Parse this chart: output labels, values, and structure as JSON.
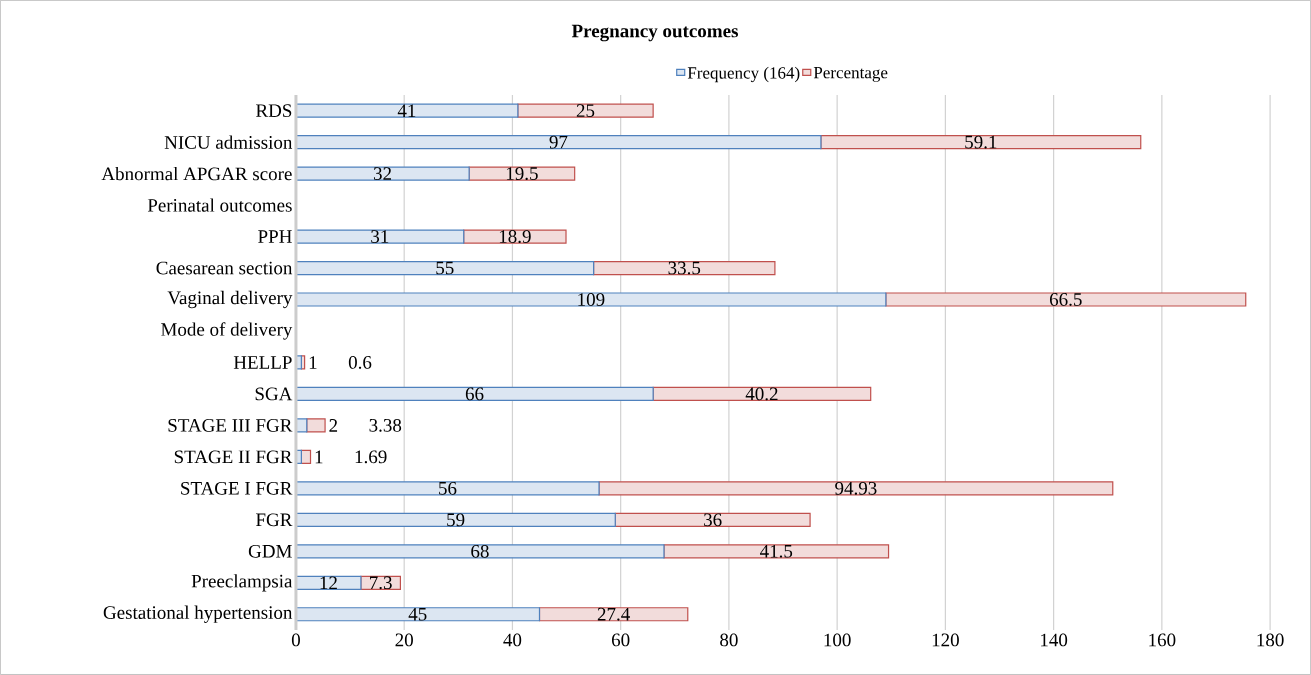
{
  "chart_data": {
    "type": "bar",
    "orientation": "horizontal",
    "stacked": true,
    "title": "Pregnancy outcomes",
    "categories": [
      "RDS",
      "NICU admission",
      "Abnormal APGAR score",
      "Perinatal outcomes",
      "PPH",
      "Caesarean section",
      "Vaginal delivery",
      "Mode of delivery",
      "HELLP",
      "SGA",
      "STAGE III FGR",
      "STAGE II FGR",
      "STAGE I FGR",
      "FGR",
      "GDM",
      "Preeclampsia",
      "Gestational hypertension"
    ],
    "series": [
      {
        "name": "Frequency (164)",
        "color": "#4f81bd",
        "values": [
          41,
          97,
          32,
          null,
          31,
          55,
          109,
          null,
          1,
          66,
          2,
          1,
          56,
          59,
          68,
          12,
          45
        ]
      },
      {
        "name": "Percentage",
        "color": "#c0504d",
        "values": [
          25,
          59.1,
          19.5,
          null,
          18.9,
          33.5,
          66.5,
          null,
          0.6,
          40.2,
          3.38,
          1.69,
          94.93,
          36,
          41.5,
          7.3,
          27.4
        ]
      }
    ],
    "xlim": [
      0,
      180
    ],
    "xticks": [
      0,
      20,
      40,
      60,
      80,
      100,
      120,
      140,
      160,
      180
    ],
    "grid": "x",
    "legend": "top",
    "data_labels": true
  }
}
